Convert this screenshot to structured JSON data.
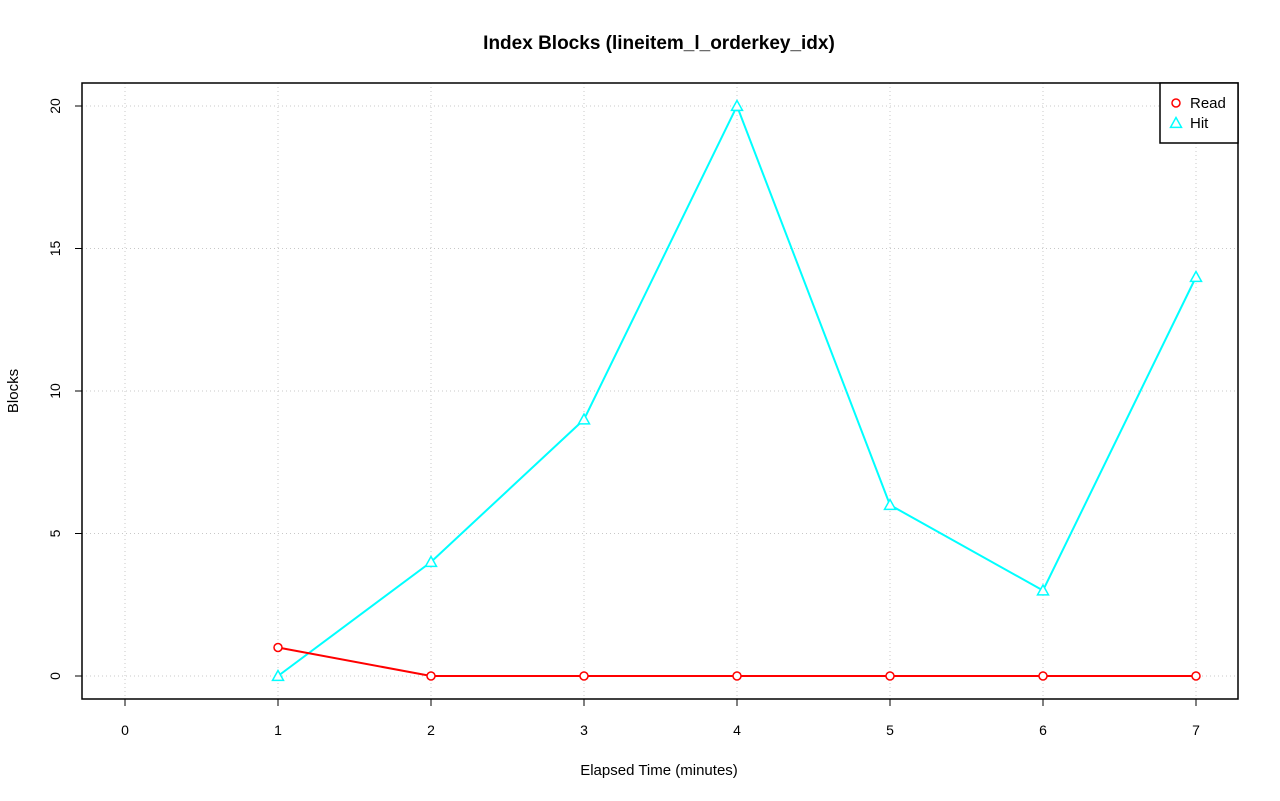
{
  "chart_data": {
    "type": "line",
    "title": "Index Blocks (lineitem_l_orderkey_idx)",
    "xlabel": "Elapsed Time (minutes)",
    "ylabel": "Blocks",
    "xlim": [
      0,
      7
    ],
    "ylim": [
      0,
      20
    ],
    "x_ticks": [
      0,
      1,
      2,
      3,
      4,
      5,
      6,
      7
    ],
    "y_ticks": [
      0,
      5,
      10,
      15,
      20
    ],
    "grid": true,
    "legend_position": "top-right",
    "x": [
      1,
      2,
      3,
      4,
      5,
      6,
      7
    ],
    "series": [
      {
        "name": "Read",
        "color": "#ff0000",
        "marker": "circle",
        "values": [
          1,
          0,
          0,
          0,
          0,
          0,
          0
        ]
      },
      {
        "name": "Hit",
        "color": "#00ffff",
        "marker": "triangle",
        "values": [
          0,
          4,
          9,
          20,
          6,
          3,
          14
        ]
      }
    ]
  }
}
